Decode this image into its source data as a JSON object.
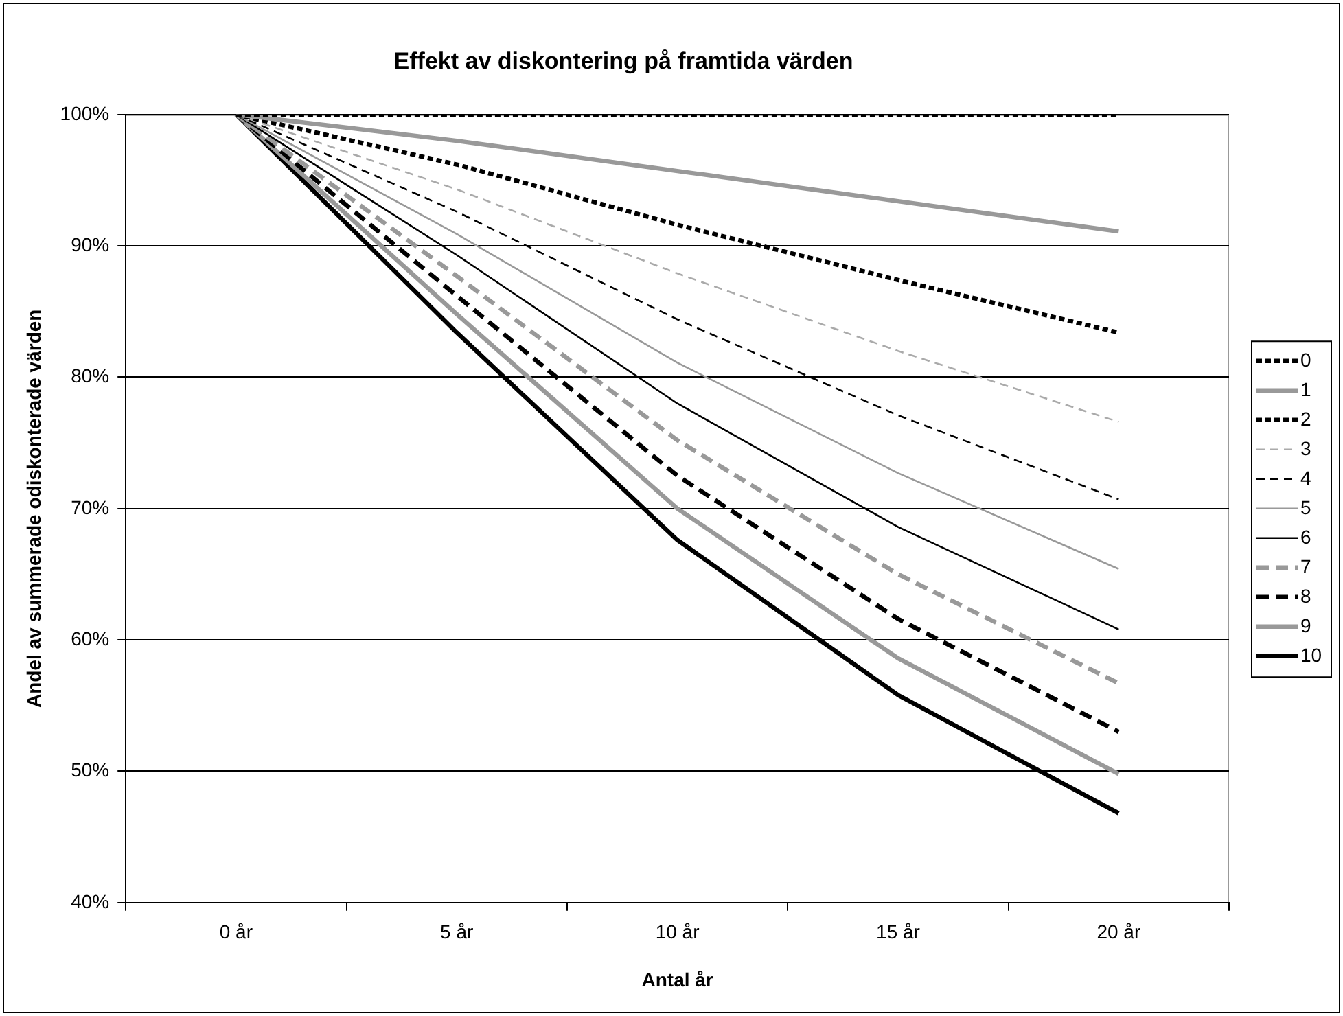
{
  "chart_data": {
    "type": "line",
    "title": "Effekt av diskontering på framtida värden",
    "xlabel": "Antal år",
    "ylabel": "Andel av summerade odiskonterade värden",
    "categories": [
      "0 år",
      "5 år",
      "10 år",
      "15 år",
      "20 år"
    ],
    "ylim": [
      40,
      100
    ],
    "yticks": [
      {
        "value": 40,
        "label": "40%"
      },
      {
        "value": 50,
        "label": "50%"
      },
      {
        "value": 60,
        "label": "60%"
      },
      {
        "value": 70,
        "label": "70%"
      },
      {
        "value": 80,
        "label": "80%"
      },
      {
        "value": 90,
        "label": "90%"
      },
      {
        "value": 100,
        "label": "100%"
      }
    ],
    "grid": "y",
    "legend": "right",
    "marker": "none",
    "series": [
      {
        "name": "0",
        "color": "#000000",
        "line_style": "dotted",
        "values": [
          100,
          100,
          100,
          100,
          100
        ]
      },
      {
        "name": "1",
        "color": "#999999",
        "line_style": "solid",
        "values": [
          100,
          98.0,
          95.7,
          93.4,
          91.1
        ]
      },
      {
        "name": "2",
        "color": "#000000",
        "line_style": "dotted",
        "values": [
          100,
          96.2,
          91.6,
          87.4,
          83.4
        ]
      },
      {
        "name": "3",
        "color": "#aaaaaa",
        "line_style": "dashed",
        "values": [
          100,
          94.3,
          87.9,
          82.0,
          76.6
        ]
      },
      {
        "name": "4",
        "color": "#000000",
        "line_style": "dashed",
        "values": [
          100,
          92.6,
          84.4,
          77.1,
          70.7
        ]
      },
      {
        "name": "5",
        "color": "#999999",
        "line_style": "solid",
        "values": [
          100,
          90.9,
          81.1,
          72.7,
          65.4
        ]
      },
      {
        "name": "6",
        "color": "#000000",
        "line_style": "solid",
        "values": [
          100,
          89.3,
          78.0,
          68.6,
          60.8
        ]
      },
      {
        "name": "7",
        "color": "#999999",
        "line_style": "dashed",
        "values": [
          100,
          87.7,
          75.2,
          65.0,
          56.7
        ]
      },
      {
        "name": "8",
        "color": "#000000",
        "line_style": "dashed",
        "values": [
          100,
          86.2,
          72.5,
          61.6,
          53.0
        ]
      },
      {
        "name": "9",
        "color": "#999999",
        "line_style": "solid",
        "values": [
          100,
          84.8,
          70.0,
          58.6,
          49.8
        ]
      },
      {
        "name": "10",
        "color": "#000000",
        "line_style": "solid",
        "values": [
          100,
          83.4,
          67.6,
          55.8,
          46.8
        ]
      }
    ]
  }
}
